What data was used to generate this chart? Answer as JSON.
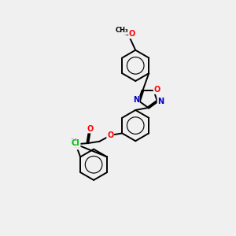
{
  "bg_color": "#f0f0f0",
  "bond_color": "#000000",
  "atom_colors": {
    "O": "#ff0000",
    "N": "#0000cc",
    "Cl": "#00bb00",
    "C": "#000000",
    "H": "#000000"
  },
  "lw": 1.4,
  "dbo": 0.04
}
